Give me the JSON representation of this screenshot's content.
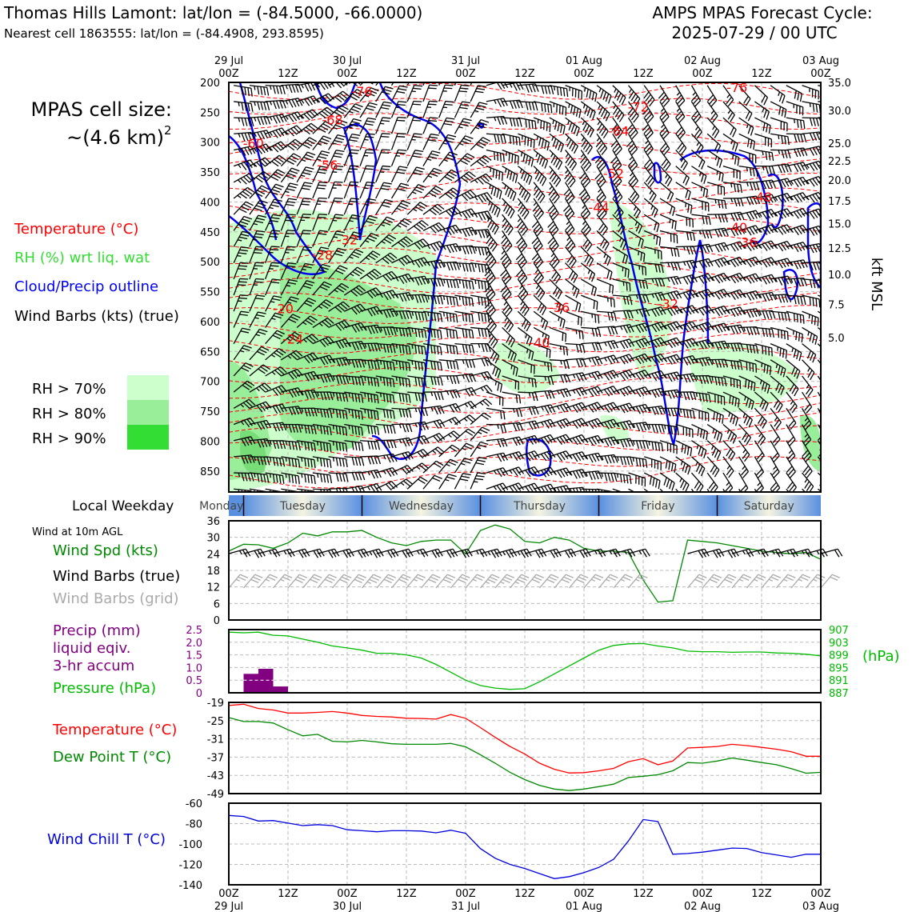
{
  "header": {
    "station": "Thomas Hills Lamont: lat/lon = (-84.5000, -66.0000)",
    "nearest": "Nearest cell 1863555: lat/lon = (-84.4908, 293.8595)",
    "cycle_line1": "AMPS MPAS Forecast Cycle:",
    "cycle_line2": "2025-07-29 / 00 UTC"
  },
  "cellsize": {
    "line1": "MPAS cell size:",
    "line2": "~(4.6 km)",
    "sup": "2"
  },
  "legend": {
    "temperature": "Temperature (°C)",
    "rh": "RH (%) wrt liq. wat",
    "cloud": "Cloud/Precip outline",
    "barbs": "Wind Barbs (kts) (true)",
    "rh70": "RH > 70%",
    "rh80": "RH > 80%",
    "rh90": "RH > 90%",
    "colors": {
      "temp": "#ff0000",
      "rh": "#33dd33",
      "cloud": "#0000ff",
      "rh70": "#ccffcc",
      "rh80": "#99ee99",
      "rh90": "#33dd33"
    }
  },
  "time_axis": {
    "top_labels": [
      {
        "l1": "29 Jul",
        "l2": "00Z"
      },
      {
        "l1": "",
        "l2": "12Z"
      },
      {
        "l1": "30 Jul",
        "l2": "00Z"
      },
      {
        "l1": "",
        "l2": "12Z"
      },
      {
        "l1": "31 Jul",
        "l2": "00Z"
      },
      {
        "l1": "",
        "l2": "12Z"
      },
      {
        "l1": "01 Aug",
        "l2": "00Z"
      },
      {
        "l1": "",
        "l2": "12Z"
      },
      {
        "l1": "02 Aug",
        "l2": "00Z"
      },
      {
        "l1": "",
        "l2": "12Z"
      },
      {
        "l1": "03 Aug",
        "l2": "00Z"
      }
    ],
    "hours": [
      0,
      12,
      24,
      36,
      48,
      60,
      72,
      84,
      96,
      108,
      120
    ],
    "range_hours": [
      0,
      120
    ]
  },
  "weekday": {
    "label": "Local Weekday",
    "days": [
      "Monday",
      "Tuesday",
      "Wednesday",
      "Thursday",
      "Friday",
      "Saturday"
    ]
  },
  "chart_data": [
    {
      "type": "heatmap",
      "name": "cross-section",
      "ylabel_right": "kft MSL",
      "y_pressure_ticks": [
        200,
        250,
        300,
        350,
        400,
        450,
        500,
        550,
        600,
        650,
        700,
        750,
        800,
        850
      ],
      "y_kft_ticks": [
        {
          "label": "35.0",
          "p": 200
        },
        {
          "label": "30.0",
          "p": 247
        },
        {
          "label": "25.0",
          "p": 302
        },
        {
          "label": "22.5",
          "p": 331
        },
        {
          "label": "20.0",
          "p": 363
        },
        {
          "label": "17.5",
          "p": 398
        },
        {
          "label": "15.0",
          "p": 436
        },
        {
          "label": "12.5",
          "p": 477
        },
        {
          "label": "10.0",
          "p": 521
        },
        {
          "label": "7.5",
          "p": 571
        },
        {
          "label": "5.0",
          "p": 627
        }
      ],
      "temp_labels": [
        {
          "v": "-76",
          "h": 27,
          "p": 215
        },
        {
          "v": "-68",
          "h": 21,
          "p": 262
        },
        {
          "v": "-60",
          "h": 5,
          "p": 302
        },
        {
          "v": "-56",
          "h": 20,
          "p": 338
        },
        {
          "v": "-76",
          "h": 103,
          "p": 208
        },
        {
          "v": "-72",
          "h": 83,
          "p": 241
        },
        {
          "v": "-64",
          "h": 79,
          "p": 281
        },
        {
          "v": "-52",
          "h": 78,
          "p": 352
        },
        {
          "v": "-48",
          "h": 108,
          "p": 391
        },
        {
          "v": "-44",
          "h": 75,
          "p": 409
        },
        {
          "v": "-40",
          "h": 103,
          "p": 442
        },
        {
          "v": "-36",
          "h": 105,
          "p": 467
        },
        {
          "v": "-32",
          "h": 24,
          "p": 463
        },
        {
          "v": "-28",
          "h": 19,
          "p": 488
        },
        {
          "v": "-32",
          "h": 89,
          "p": 570
        },
        {
          "v": "-20",
          "h": 11,
          "p": 578
        },
        {
          "v": "-36",
          "h": 67,
          "p": 576
        },
        {
          "v": "-24",
          "h": 13,
          "p": 629
        },
        {
          "v": "-40",
          "h": 63,
          "p": 635
        }
      ]
    },
    {
      "type": "line",
      "name": "surface-wind",
      "title": "Wind at 10m AGL",
      "series_label": "Wind Spd (kts)",
      "barb_true_label": "Wind Barbs (true)",
      "barb_grid_label": "Wind Barbs (grid)",
      "y_ticks": [
        0,
        6,
        12,
        18,
        24,
        30,
        36
      ],
      "ylim": [
        0,
        36
      ],
      "x": [
        0,
        3,
        6,
        9,
        12,
        15,
        18,
        21,
        24,
        27,
        30,
        33,
        36,
        39,
        42,
        45,
        48,
        51,
        54,
        57,
        60,
        63,
        66,
        69,
        72,
        75,
        78,
        81,
        84,
        87,
        90,
        93,
        96,
        99,
        102,
        105,
        108,
        111,
        114,
        117,
        120
      ],
      "values": [
        25,
        27.5,
        27.3,
        26,
        28,
        31.5,
        30.5,
        32,
        32,
        32.5,
        30,
        28,
        27,
        28.5,
        29,
        29,
        24,
        32.5,
        34.5,
        33,
        28.5,
        28,
        30,
        29,
        26,
        25,
        25,
        24.5,
        14.5,
        6.5,
        7,
        29,
        28.5,
        28,
        27,
        26,
        25,
        24.5,
        24,
        24.5,
        22
      ]
    },
    {
      "type": "line",
      "name": "precip-pressure",
      "precip_label": "Precip (mm) liquid eqiv. 3-hr accum",
      "pressure_label": "Pressure (hPa)",
      "unit_right": "(hPa)",
      "precip_ticks": [
        "2.5",
        "2.0",
        "1.5",
        "1.0",
        "0.5",
        "0"
      ],
      "precip_ylim": [
        0,
        2.5
      ],
      "pressure_ticks": [
        "907",
        "903",
        "899",
        "895",
        "891",
        "887"
      ],
      "pressure_ylim": [
        887,
        907
      ],
      "precip_bars": [
        {
          "x0": 3,
          "x1": 6,
          "v": 0.75
        },
        {
          "x0": 6,
          "x1": 9,
          "v": 0.95
        },
        {
          "x0": 9,
          "x1": 12,
          "v": 0.25
        }
      ],
      "pressure_x": [
        0,
        3,
        6,
        9,
        12,
        15,
        18,
        21,
        24,
        27,
        30,
        33,
        36,
        39,
        42,
        45,
        48,
        51,
        54,
        57,
        60,
        63,
        66,
        69,
        72,
        75,
        78,
        81,
        84,
        87,
        90,
        93,
        96,
        99,
        102,
        105,
        108,
        111,
        114,
        117,
        120
      ],
      "pressure_values": [
        906.2,
        906,
        906.2,
        905.2,
        905,
        904,
        903,
        901.8,
        901.2,
        900.5,
        899.5,
        899.5,
        899,
        898,
        896,
        893.5,
        891,
        889.3,
        888.5,
        888.1,
        888.3,
        890.5,
        893,
        895.5,
        898,
        900.5,
        902,
        902.5,
        902.6,
        901.8,
        901.2,
        900.2,
        900,
        900,
        899.8,
        899.9,
        899.9,
        899.6,
        899.5,
        899.2,
        898.7
      ]
    },
    {
      "type": "line",
      "name": "temp-dewpoint",
      "temp_label": "Temperature (°C)",
      "dew_label": "Dew Point T (°C)",
      "y_ticks": [
        -19,
        -25,
        -31,
        -37,
        -43,
        -49
      ],
      "ylim": [
        -49,
        -19
      ],
      "x": [
        0,
        3,
        6,
        9,
        12,
        15,
        18,
        21,
        24,
        27,
        30,
        33,
        36,
        39,
        42,
        45,
        48,
        51,
        54,
        57,
        60,
        63,
        66,
        69,
        72,
        75,
        78,
        81,
        84,
        87,
        90,
        93,
        96,
        99,
        102,
        105,
        108,
        111,
        114,
        117,
        120
      ],
      "temp": [
        -20,
        -19.6,
        -21,
        -21.5,
        -22.5,
        -22.5,
        -22.3,
        -22,
        -22.5,
        -23.3,
        -23.6,
        -23.8,
        -24.2,
        -24.3,
        -24.5,
        -23,
        -24.2,
        -27.3,
        -30.5,
        -33.5,
        -36,
        -39,
        -41,
        -42.2,
        -42.1,
        -41.5,
        -40.7,
        -38.5,
        -37.5,
        -39.5,
        -38.3,
        -34,
        -33.8,
        -33.5,
        -32.8,
        -33.2,
        -33.8,
        -34.4,
        -35.2,
        -36.7,
        -36.7
      ],
      "dew": [
        -24,
        -25.3,
        -25.3,
        -25.8,
        -28,
        -30,
        -29.5,
        -31.8,
        -32,
        -31.5,
        -32,
        -32.6,
        -32.8,
        -32.8,
        -32.8,
        -32.5,
        -33.6,
        -36.2,
        -39,
        -42,
        -44.4,
        -46.3,
        -47.5,
        -48,
        -47.5,
        -46.7,
        -45.9,
        -43.7,
        -43.3,
        -42.8,
        -41.5,
        -38.8,
        -39,
        -38.3,
        -37.3,
        -38,
        -38.8,
        -39.5,
        -40.8,
        -42.3,
        -42
      ]
    },
    {
      "type": "line",
      "name": "wind-chill",
      "series_label": "Wind Chill T (°C)",
      "y_ticks": [
        -60,
        -80,
        -100,
        -120,
        -140
      ],
      "ylim": [
        -140,
        -60
      ],
      "x": [
        0,
        3,
        6,
        9,
        12,
        15,
        18,
        21,
        24,
        27,
        30,
        33,
        36,
        39,
        42,
        45,
        48,
        51,
        54,
        57,
        60,
        63,
        66,
        69,
        72,
        75,
        78,
        81,
        84,
        87,
        90,
        93,
        96,
        99,
        102,
        105,
        108,
        111,
        114,
        117,
        120
      ],
      "values": [
        -72,
        -73,
        -77.5,
        -77,
        -79.5,
        -82,
        -81,
        -82,
        -86,
        -87,
        -88,
        -87,
        -87,
        -87.3,
        -89,
        -86.5,
        -89.5,
        -104.5,
        -114,
        -120,
        -124,
        -129,
        -134,
        -132,
        -128,
        -123,
        -115,
        -97,
        -76,
        -78,
        -110,
        -109.3,
        -108,
        -106,
        -104,
        -104.4,
        -108.5,
        -110.7,
        -113,
        -110,
        -110
      ]
    }
  ],
  "bottom_axis": {
    "labels": [
      {
        "l1": "00Z",
        "l2": "29 Jul"
      },
      {
        "l1": "12Z",
        "l2": ""
      },
      {
        "l1": "00Z",
        "l2": "30 Jul"
      },
      {
        "l1": "12Z",
        "l2": ""
      },
      {
        "l1": "00Z",
        "l2": "31 Jul"
      },
      {
        "l1": "12Z",
        "l2": ""
      },
      {
        "l1": "00Z",
        "l2": "01 Aug"
      },
      {
        "l1": "12Z",
        "l2": ""
      },
      {
        "l1": "00Z",
        "l2": "02 Aug"
      },
      {
        "l1": "12Z",
        "l2": ""
      },
      {
        "l1": "00Z",
        "l2": "03 Aug"
      }
    ]
  }
}
